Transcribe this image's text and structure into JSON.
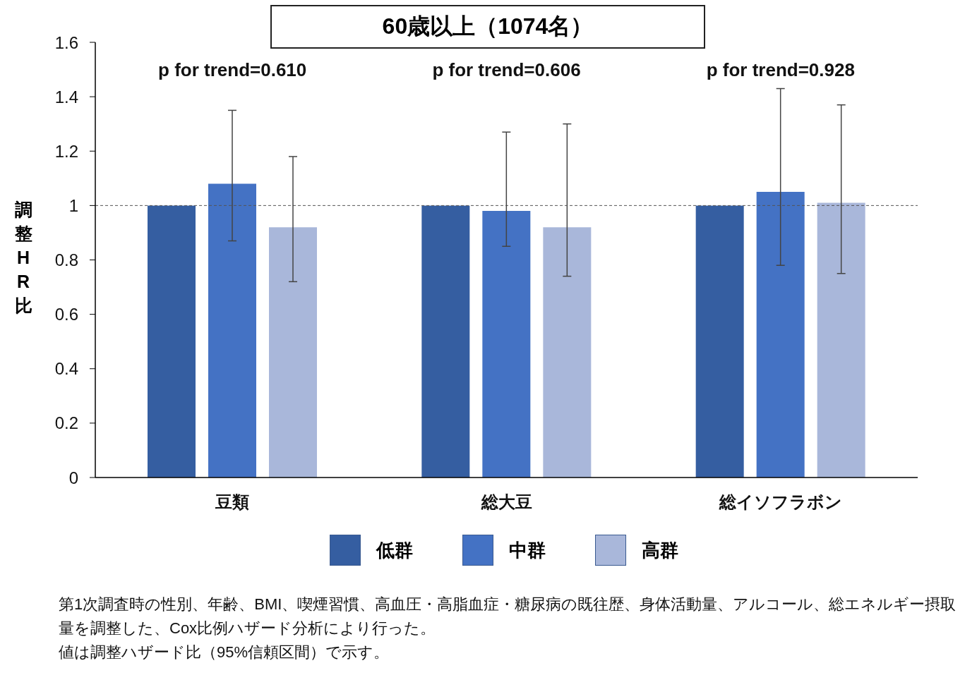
{
  "chart_data": {
    "type": "bar",
    "title": "60歳以上（1074名）",
    "ylabel": "調整HR比",
    "categories": [
      "豆類",
      "総大豆",
      "総イソフラボン"
    ],
    "series": [
      {
        "name": "低群",
        "color": "#355ea1",
        "values": [
          1,
          1,
          1
        ],
        "errors": [
          null,
          null,
          null
        ]
      },
      {
        "name": "中群",
        "color": "#4472c4",
        "values": [
          1.08,
          0.98,
          1.05
        ],
        "errors": [
          [
            0.87,
            1.35
          ],
          [
            0.85,
            1.27
          ],
          [
            0.78,
            1.43
          ]
        ]
      },
      {
        "name": "高群",
        "color": "#a9b7da",
        "values": [
          0.92,
          0.92,
          1.01
        ],
        "errors": [
          [
            0.72,
            1.18
          ],
          [
            0.74,
            1.3
          ],
          [
            0.75,
            1.37
          ]
        ]
      }
    ],
    "ylim": [
      0,
      1.6
    ],
    "yticks": [
      0,
      0.2,
      0.4,
      0.6,
      0.8,
      1,
      1.2,
      1.4,
      1.6
    ],
    "grid": false,
    "legend": "bottom",
    "ref_lines": [
      {
        "axis": "y",
        "value": 1,
        "color": "#555555",
        "line_style": "dashed"
      }
    ],
    "annotations": [
      "p for trend=0.610",
      "p for trend=0.606",
      "p for trend=0.928",
      "第1次調査時の性別、年齢、BMI、喫煙習慣、高血圧・高脂血症・糖尿病の既往歴、身体活動量、アルコール、総エネルギー摂取量を調整した、Cox比例ハザード分析により行った。",
      "値は調整ハザード比（95%信頼区間）で示す。"
    ]
  }
}
